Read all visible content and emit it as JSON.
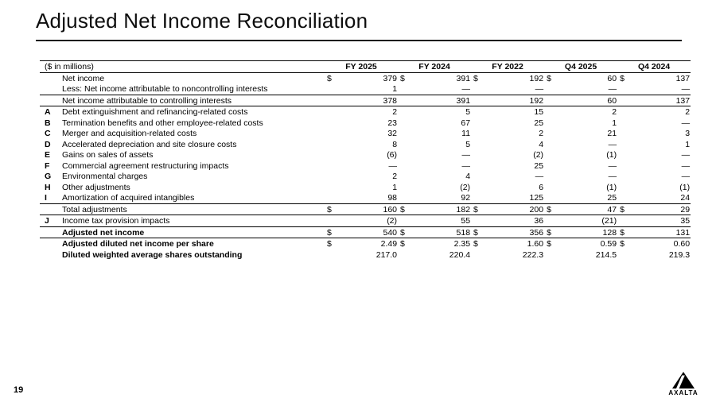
{
  "page": {
    "title": "Adjusted Net Income Reconciliation",
    "page_number": "19",
    "logo_text": "AXALTA"
  },
  "table": {
    "unit_label": "($ in millions)",
    "columns": [
      "FY 2025",
      "FY 2024",
      "FY 2022",
      "Q4 2025",
      "Q4 2024"
    ],
    "rows": [
      {
        "note": "",
        "label": "Net income",
        "dollar": true,
        "bold": false,
        "top": false,
        "bottom": false,
        "values": [
          "379",
          "391",
          "192",
          "60",
          "137"
        ]
      },
      {
        "note": "",
        "label": "Less: Net income attributable to noncontrolling interests",
        "dollar": false,
        "bold": false,
        "top": false,
        "bottom": true,
        "values": [
          "1",
          "—",
          "—",
          "—",
          "—"
        ]
      },
      {
        "note": "",
        "label": "Net income attributable to controlling interests",
        "dollar": false,
        "bold": false,
        "top": false,
        "bottom": true,
        "values": [
          "378",
          "391",
          "192",
          "60",
          "137"
        ]
      },
      {
        "note": "A",
        "label": "Debt extinguishment and refinancing-related costs",
        "dollar": false,
        "bold": false,
        "top": false,
        "bottom": false,
        "values": [
          "2",
          "5",
          "15",
          "2",
          "2"
        ]
      },
      {
        "note": "B",
        "label": "Termination benefits and other employee-related costs",
        "dollar": false,
        "bold": false,
        "top": false,
        "bottom": false,
        "values": [
          "23",
          "67",
          "25",
          "1",
          "—"
        ]
      },
      {
        "note": "C",
        "label": "Merger and acquisition-related costs",
        "dollar": false,
        "bold": false,
        "top": false,
        "bottom": false,
        "values": [
          "32",
          "11",
          "2",
          "21",
          "3"
        ]
      },
      {
        "note": "D",
        "label": "Accelerated depreciation and site closure costs",
        "dollar": false,
        "bold": false,
        "top": false,
        "bottom": false,
        "values": [
          "8",
          "5",
          "4",
          "—",
          "1"
        ]
      },
      {
        "note": "E",
        "label": "Gains on sales of assets",
        "dollar": false,
        "bold": false,
        "top": false,
        "bottom": false,
        "values": [
          "(6)",
          "—",
          "(2)",
          "(1)",
          "—"
        ]
      },
      {
        "note": "F",
        "label": "Commercial agreement restructuring impacts",
        "dollar": false,
        "bold": false,
        "top": false,
        "bottom": false,
        "values": [
          "—",
          "—",
          "25",
          "—",
          "—"
        ]
      },
      {
        "note": "G",
        "label": "Environmental charges",
        "dollar": false,
        "bold": false,
        "top": false,
        "bottom": false,
        "values": [
          "2",
          "4",
          "—",
          "—",
          "—"
        ]
      },
      {
        "note": "H",
        "label": "Other adjustments",
        "dollar": false,
        "bold": false,
        "top": false,
        "bottom": false,
        "values": [
          "1",
          "(2)",
          "6",
          "(1)",
          "(1)"
        ]
      },
      {
        "note": "I",
        "label": "Amortization of acquired intangibles",
        "dollar": false,
        "bold": false,
        "top": false,
        "bottom": false,
        "values": [
          "98",
          "92",
          "125",
          "25",
          "24"
        ]
      },
      {
        "note": "",
        "label": "Total adjustments",
        "dollar": true,
        "bold": false,
        "top": true,
        "bottom": true,
        "values": [
          "160",
          "182",
          "200",
          "47",
          "29"
        ]
      },
      {
        "note": "J",
        "label": "Income tax provision impacts",
        "dollar": false,
        "bold": false,
        "top": false,
        "bottom": true,
        "values": [
          "(2)",
          "55",
          "36",
          "(21)",
          "35"
        ]
      },
      {
        "note": "",
        "label": "Adjusted net income",
        "dollar": true,
        "bold": true,
        "top": false,
        "bottom": true,
        "values": [
          "540",
          "518",
          "356",
          "128",
          "131"
        ]
      },
      {
        "note": "",
        "label": "Adjusted diluted net income per share",
        "dollar": true,
        "bold": true,
        "top": false,
        "bottom": false,
        "values": [
          "2.49",
          "2.35",
          "1.60",
          "0.59",
          "0.60"
        ]
      },
      {
        "note": "",
        "label": "Diluted weighted average shares outstanding",
        "dollar": false,
        "bold": true,
        "top": false,
        "bottom": false,
        "values": [
          "217.0",
          "220.4",
          "222.3",
          "214.5",
          "219.3"
        ]
      }
    ]
  }
}
